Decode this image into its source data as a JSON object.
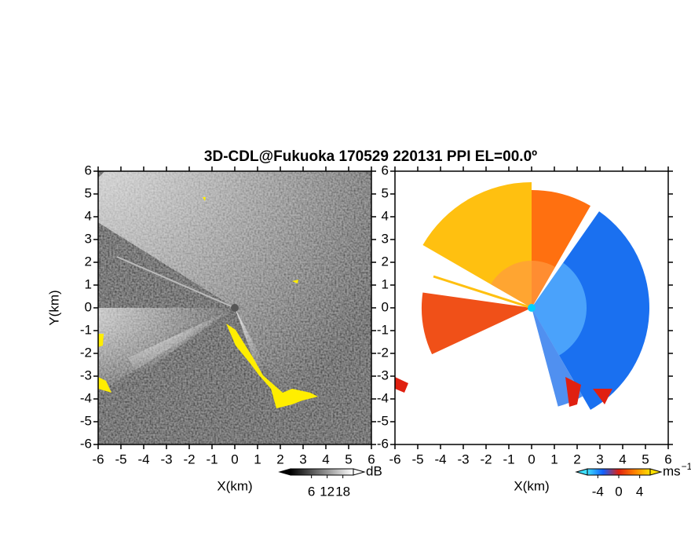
{
  "title": "3D-CDL@Fukuoka 170529 220131 PPI EL=00.0º",
  "chart_data": [
    {
      "type": "heatmap",
      "xlabel": "X(km)",
      "ylabel": "Y(km)",
      "xlim": [
        -6,
        6
      ],
      "ylim": [
        -6,
        6
      ],
      "xticks": [
        -6,
        -5,
        -4,
        -3,
        -2,
        -1,
        0,
        1,
        2,
        3,
        4,
        5,
        6
      ],
      "yticks": [
        -6,
        -5,
        -4,
        -3,
        -2,
        -1,
        0,
        1,
        2,
        3,
        4,
        5,
        6
      ],
      "colorbar": {
        "label": "dB",
        "lim": [
          -2,
          22
        ],
        "ticks": [
          6,
          12,
          18
        ],
        "colors": [
          "#000000",
          "#ffffff"
        ]
      }
    },
    {
      "type": "heatmap",
      "xlabel": "X(km)",
      "xlim": [
        -6,
        6
      ],
      "ylim": [
        -6,
        6
      ],
      "xticks": [
        -6,
        -5,
        -4,
        -3,
        -2,
        -1,
        0,
        1,
        2,
        3,
        4,
        5,
        6
      ],
      "yticks": [
        -6,
        -5,
        -4,
        -3,
        -2,
        -1,
        0,
        1,
        2,
        3,
        4,
        5,
        6
      ],
      "colorbar": {
        "label": "ms",
        "label_superscript": "−1",
        "lim": [
          -6,
          6
        ],
        "ticks": [
          -4,
          0,
          4
        ],
        "colors": [
          "#40e0ff",
          "#1060ff",
          "#e02010",
          "#ff8000",
          "#ffe000"
        ]
      }
    }
  ]
}
